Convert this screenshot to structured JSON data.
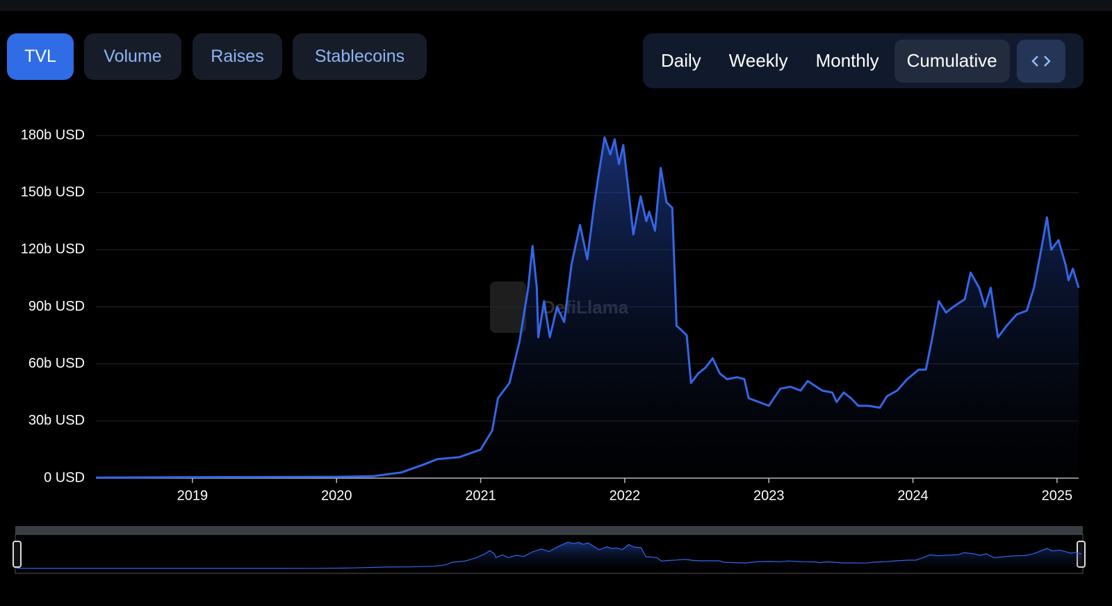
{
  "tabs": [
    "TVL",
    "Volume",
    "Raises",
    "Stablecoins"
  ],
  "periods": [
    "Daily",
    "Weekly",
    "Monthly",
    "Cumulative"
  ],
  "watermark": "DefiLlama",
  "chart_data": {
    "type": "area",
    "color": "#3566e6",
    "x": [
      2018.33,
      2019.0,
      2020.0,
      2020.25,
      2020.45,
      2020.6,
      2020.7,
      2020.85,
      2021.0,
      2021.08,
      2021.12,
      2021.2,
      2021.27,
      2021.33,
      2021.36,
      2021.39,
      2021.4,
      2021.44,
      2021.48,
      2021.53,
      2021.58,
      2021.63,
      2021.69,
      2021.74,
      2021.79,
      2021.82,
      2021.86,
      2021.9,
      2021.93,
      2021.96,
      2021.99,
      2022.02,
      2022.06,
      2022.11,
      2022.15,
      2022.17,
      2022.21,
      2022.25,
      2022.29,
      2022.33,
      2022.36,
      2022.39,
      2022.43,
      2022.46,
      2022.51,
      2022.56,
      2022.61,
      2022.66,
      2022.71,
      2022.78,
      2022.83,
      2022.86,
      2022.93,
      2023.0,
      2023.08,
      2023.15,
      2023.22,
      2023.27,
      2023.37,
      2023.44,
      2023.47,
      2023.52,
      2023.57,
      2023.62,
      2023.69,
      2023.77,
      2023.82,
      2023.89,
      2023.96,
      2024.04,
      2024.09,
      2024.13,
      2024.18,
      2024.23,
      2024.28,
      2024.36,
      2024.4,
      2024.46,
      2024.5,
      2024.54,
      2024.59,
      2024.65,
      2024.72,
      2024.79,
      2024.84,
      2024.89,
      2024.93,
      2024.96,
      2025.01,
      2025.06,
      2025.08,
      2025.11,
      2025.15
    ],
    "values": [
      0.3,
      0.5,
      0.7,
      1,
      3,
      7,
      10,
      11,
      15,
      25,
      42,
      50,
      72,
      100,
      122,
      100,
      74,
      93,
      74,
      90,
      82,
      112,
      133,
      115,
      145,
      160,
      179,
      170,
      178,
      165,
      175,
      155,
      128,
      148,
      135,
      140,
      130,
      163,
      145,
      142,
      80,
      78,
      75,
      50,
      55,
      58,
      63,
      55,
      52,
      53,
      52,
      42,
      40,
      38,
      47,
      48,
      46,
      51,
      46,
      45,
      40,
      45,
      42,
      38,
      38,
      37,
      43,
      46,
      52,
      57,
      57,
      72,
      93,
      87,
      90,
      94,
      108,
      100,
      90,
      100,
      74,
      80,
      86,
      88,
      100,
      120,
      137,
      120,
      125,
      112,
      104,
      110,
      100
    ],
    "xlim": [
      2018.33,
      2025.15
    ],
    "ylim": [
      0,
      180
    ],
    "xticks": [
      2019,
      2020,
      2021,
      2022,
      2023,
      2024,
      2025
    ],
    "yticks": [
      {
        "value": 0,
        "label": "0 USD"
      },
      {
        "value": 30,
        "label": "30b USD"
      },
      {
        "value": 60,
        "label": "60b USD"
      },
      {
        "value": 90,
        "label": "90b USD"
      },
      {
        "value": 120,
        "label": "120b USD"
      },
      {
        "value": 150,
        "label": "150b USD"
      },
      {
        "value": 180,
        "label": "180b USD"
      }
    ],
    "grid": true
  }
}
